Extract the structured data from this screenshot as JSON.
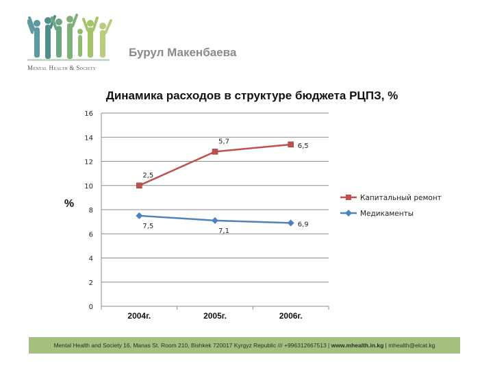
{
  "header": {
    "logo_text": "Mental Health & Society",
    "author": "Бурул Макенбаева"
  },
  "chart_data": {
    "type": "line",
    "title": "Динамика расходов в структуре бюджета РЦПЗ, %",
    "ylabel": "%",
    "xlabel": "",
    "categories": [
      "2004г.",
      "2005г.",
      "2006г."
    ],
    "ylim": [
      0,
      16
    ],
    "yticks": [
      0,
      2,
      4,
      6,
      8,
      10,
      12,
      14,
      16
    ],
    "grid": true,
    "legend_position": "right",
    "series": [
      {
        "name": "Капитальный ремонт",
        "values": [
          10.0,
          12.8,
          13.4
        ],
        "labels": [
          "2,5",
          "5,7",
          "6,5"
        ],
        "color": "#c0504d",
        "marker": "square"
      },
      {
        "name": "Медикаменты",
        "values": [
          7.5,
          7.1,
          6.9
        ],
        "labels": [
          "7,5",
          "7,1",
          "6,9"
        ],
        "color": "#4f81bd",
        "marker": "diamond"
      }
    ]
  },
  "footer": {
    "text": "Mental Health and Society 16, Manas St. Room 210, Bishkek 720017 Kyrgyz Republic /// +996312667513 | ",
    "website": "www.mhealth.in.kg",
    "email": " | mhealth@elcat.kg"
  },
  "colors": {
    "footer_bg": "#a4c07e",
    "series1": "#c0504d",
    "series2": "#4f81bd"
  }
}
